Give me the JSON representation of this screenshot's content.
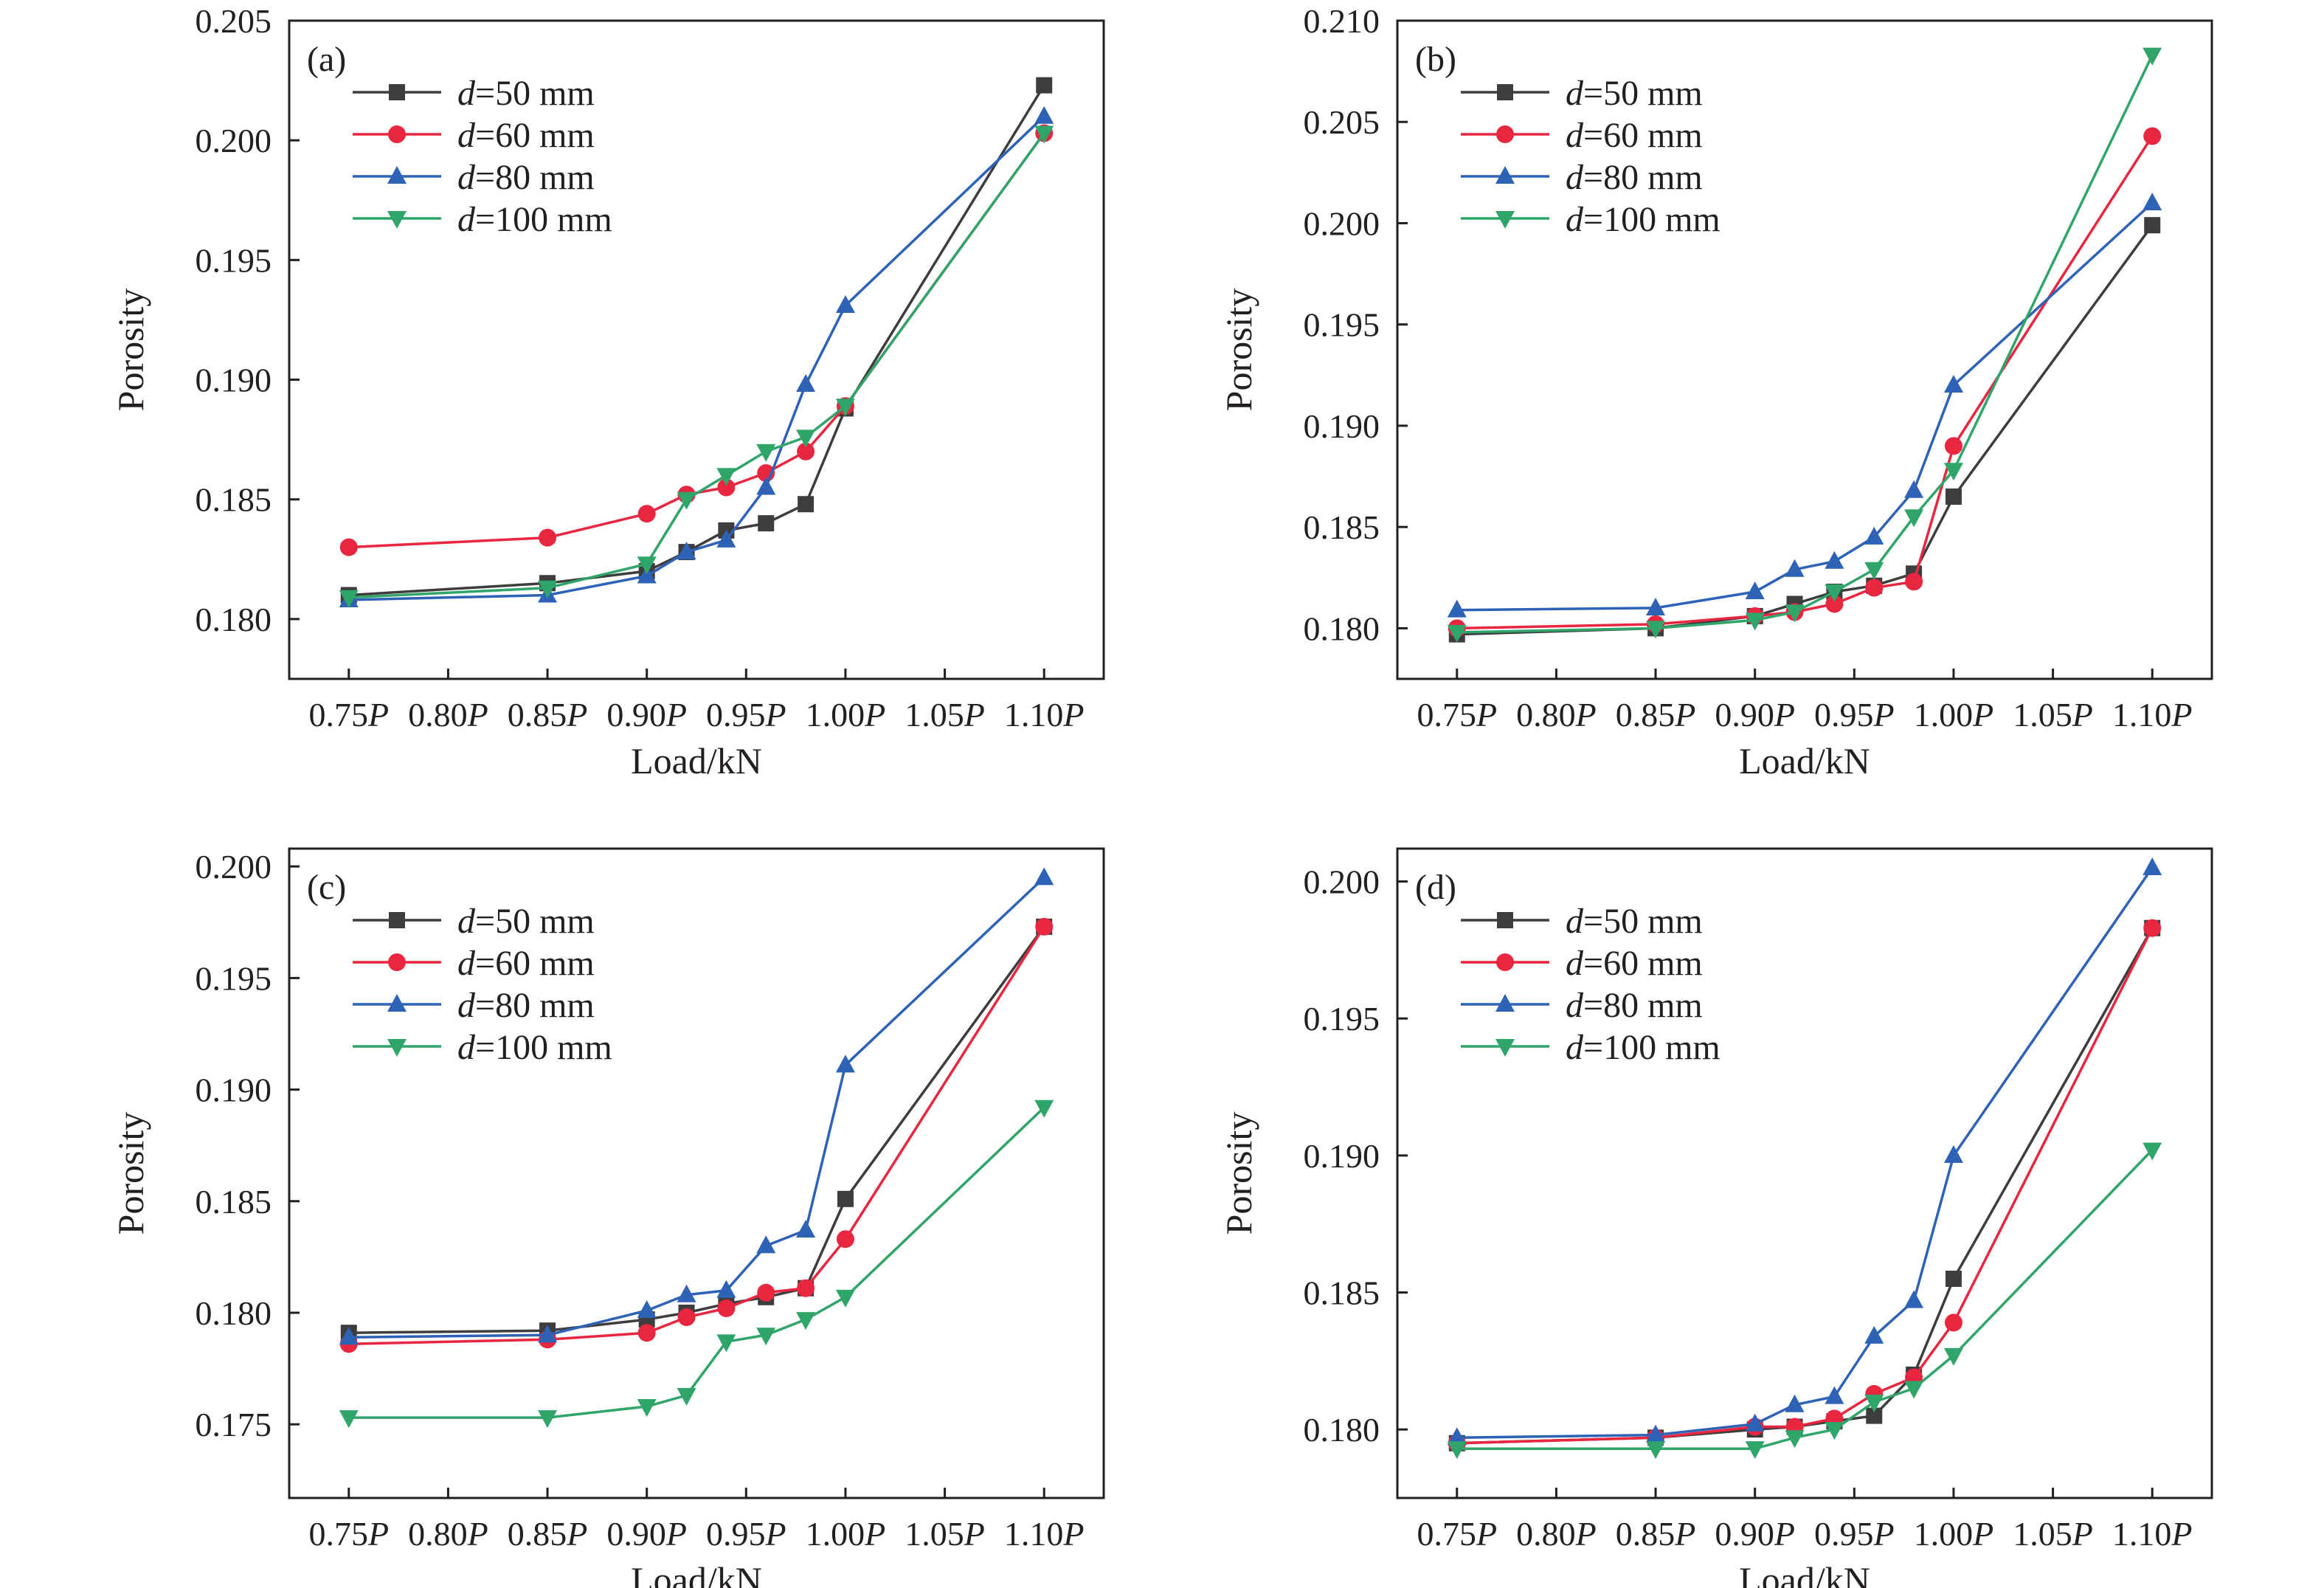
{
  "figure": {
    "x_tick_suffix": "P",
    "legend_var": "d",
    "legend_unit": " mm"
  },
  "chart_data": [
    {
      "type": "line",
      "tag": "(a)",
      "xlabel": "Load/kN",
      "ylabel": "Porosity",
      "xlim": [
        0.72,
        1.13
      ],
      "ylim": [
        0.1775,
        0.205
      ],
      "xticks": [
        "0.75",
        "0.80",
        "0.85",
        "0.90",
        "0.95",
        "1.00",
        "1.05",
        "1.10"
      ],
      "yticks": [
        "0.180",
        "0.185",
        "0.190",
        "0.195",
        "0.200",
        "0.205"
      ],
      "legend_position": "top-left",
      "x": [
        0.75,
        0.85,
        0.9,
        0.92,
        0.94,
        0.96,
        0.98,
        1.0,
        1.1
      ],
      "series": [
        {
          "name": "=50 mm",
          "color": "#3d3d3d",
          "marker": "square",
          "values": [
            0.181,
            0.1815,
            0.182,
            0.1828,
            0.1837,
            0.184,
            0.1848,
            0.1888,
            0.2023
          ]
        },
        {
          "name": "=60 mm",
          "color": "#e8263f",
          "marker": "circle",
          "values": [
            0.183,
            0.1834,
            0.1844,
            0.1852,
            0.1855,
            0.1861,
            0.187,
            0.1889,
            0.2003
          ]
        },
        {
          "name": "=80 mm",
          "color": "#2e62b6",
          "marker": "triangle-up",
          "values": [
            0.1808,
            0.181,
            0.1818,
            0.1828,
            0.1833,
            0.1855,
            0.1898,
            0.1931,
            0.201
          ]
        },
        {
          "name": "=100 mm",
          "color": "#2fa56a",
          "marker": "triangle-down",
          "values": [
            0.1809,
            0.1813,
            0.1823,
            0.185,
            0.186,
            0.187,
            0.1876,
            0.1889,
            0.2003
          ]
        }
      ]
    },
    {
      "type": "line",
      "tag": "(b)",
      "xlabel": "Load/kN",
      "ylabel": "Porosity",
      "xlim": [
        0.72,
        1.13
      ],
      "ylim": [
        0.1775,
        0.21
      ],
      "xticks": [
        "0.75",
        "0.80",
        "0.85",
        "0.90",
        "0.95",
        "1.00",
        "1.05",
        "1.10"
      ],
      "yticks": [
        "0.180",
        "0.185",
        "0.190",
        "0.195",
        "0.200",
        "0.205",
        "0.210"
      ],
      "legend_position": "top-left",
      "x": [
        0.75,
        0.85,
        0.9,
        0.92,
        0.94,
        0.96,
        0.98,
        1.0,
        1.1
      ],
      "series": [
        {
          "name": "=50 mm",
          "color": "#3d3d3d",
          "marker": "square",
          "values": [
            0.1797,
            0.18,
            0.1806,
            0.1812,
            0.1818,
            0.1821,
            0.1827,
            0.1865,
            0.1999
          ]
        },
        {
          "name": "=60 mm",
          "color": "#e8263f",
          "marker": "circle",
          "values": [
            0.18,
            0.1802,
            0.1806,
            0.1808,
            0.1812,
            0.182,
            0.1823,
            0.189,
            0.2043
          ]
        },
        {
          "name": "=80 mm",
          "color": "#2e62b6",
          "marker": "triangle-up",
          "values": [
            0.1809,
            0.181,
            0.1818,
            0.1829,
            0.1833,
            0.1845,
            0.1868,
            0.192,
            0.201
          ]
        },
        {
          "name": "=100 mm",
          "color": "#2fa56a",
          "marker": "triangle-down",
          "values": [
            0.1798,
            0.18,
            0.1804,
            0.1808,
            0.1818,
            0.1829,
            0.1855,
            0.1878,
            0.2083
          ]
        }
      ]
    },
    {
      "type": "line",
      "tag": "(c)",
      "xlabel": "Load/kN",
      "ylabel": "Porosity",
      "xlim": [
        0.72,
        1.13
      ],
      "ylim": [
        0.1717,
        0.2008
      ],
      "xticks": [
        "0.75",
        "0.80",
        "0.85",
        "0.90",
        "0.95",
        "1.00",
        "1.05",
        "1.10"
      ],
      "yticks": [
        "0.175",
        "0.180",
        "0.185",
        "0.190",
        "0.195",
        "0.200"
      ],
      "legend_position": "top-left",
      "x": [
        0.75,
        0.85,
        0.9,
        0.92,
        0.94,
        0.96,
        0.98,
        1.0,
        1.1
      ],
      "series": [
        {
          "name": "=50 mm",
          "color": "#3d3d3d",
          "marker": "square",
          "values": [
            0.1791,
            0.1792,
            0.1797,
            0.18,
            0.1804,
            0.1807,
            0.1811,
            0.1851,
            0.1973
          ]
        },
        {
          "name": "=60 mm",
          "color": "#e8263f",
          "marker": "circle",
          "values": [
            0.1786,
            0.1788,
            0.1791,
            0.1798,
            0.1802,
            0.1809,
            0.1811,
            0.1833,
            0.1973
          ]
        },
        {
          "name": "=80 mm",
          "color": "#2e62b6",
          "marker": "triangle-up",
          "values": [
            0.1789,
            0.179,
            0.1801,
            0.1808,
            0.181,
            0.183,
            0.1837,
            0.1911,
            0.1995
          ]
        },
        {
          "name": "=100 mm",
          "color": "#2fa56a",
          "marker": "triangle-down",
          "values": [
            0.1753,
            0.1753,
            0.1758,
            0.1763,
            0.1787,
            0.179,
            0.1797,
            0.1807,
            0.1892
          ]
        }
      ]
    },
    {
      "type": "line",
      "tag": "(d)",
      "xlabel": "Load/kN",
      "ylabel": "Porosity",
      "xlim": [
        0.72,
        1.13
      ],
      "ylim": [
        0.1775,
        0.2012
      ],
      "xticks": [
        "0.75",
        "0.80",
        "0.85",
        "0.90",
        "0.95",
        "1.00",
        "1.05",
        "1.10"
      ],
      "yticks": [
        "0.180",
        "0.185",
        "0.190",
        "0.195",
        "0.200"
      ],
      "legend_position": "top-left",
      "x": [
        0.75,
        0.85,
        0.9,
        0.92,
        0.94,
        0.96,
        0.98,
        1.0,
        1.1
      ],
      "series": [
        {
          "name": "=50 mm",
          "color": "#3d3d3d",
          "marker": "square",
          "values": [
            0.1795,
            0.1797,
            0.18,
            0.1801,
            0.1803,
            0.1805,
            0.182,
            0.1855,
            0.1983
          ]
        },
        {
          "name": "=60 mm",
          "color": "#e8263f",
          "marker": "circle",
          "values": [
            0.1795,
            0.1797,
            0.1801,
            0.1801,
            0.1804,
            0.1813,
            0.1819,
            0.1839,
            0.1983
          ]
        },
        {
          "name": "=80 mm",
          "color": "#2e62b6",
          "marker": "triangle-up",
          "values": [
            0.1797,
            0.1798,
            0.1802,
            0.1809,
            0.1812,
            0.1834,
            0.1847,
            0.19,
            0.2005
          ]
        },
        {
          "name": "=100 mm",
          "color": "#2fa56a",
          "marker": "triangle-down",
          "values": [
            0.1793,
            0.1793,
            0.1793,
            0.1797,
            0.18,
            0.181,
            0.1815,
            0.1827,
            0.1902
          ]
        }
      ]
    }
  ]
}
